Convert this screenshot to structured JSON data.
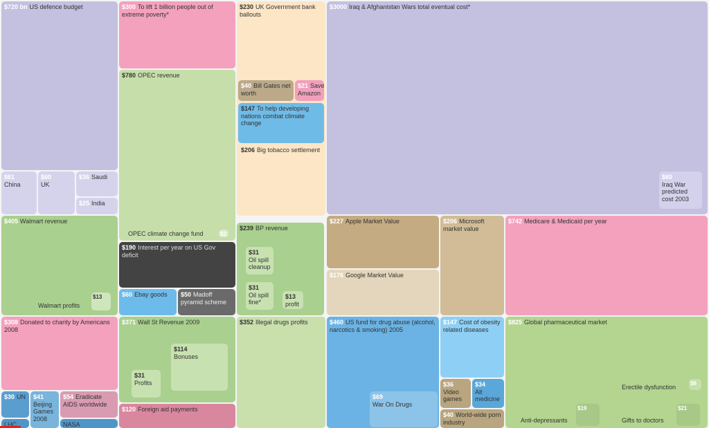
{
  "chart_data": {
    "type": "treemap",
    "unit": "bn",
    "items": [
      {
        "label": "US defence budget",
        "value": 720,
        "value_label": "$720 bn",
        "color": "#c3c0e0",
        "value_color": "#ffffff"
      },
      {
        "label": "China",
        "value": 61,
        "value_label": "$61",
        "color": "#d5d3ec",
        "value_color": "#ffffff"
      },
      {
        "label": "UK",
        "value": 60,
        "value_label": "$60",
        "color": "#d5d3ec",
        "value_color": "#ffffff"
      },
      {
        "label": "Saudi",
        "value": 36,
        "value_label": "$36",
        "color": "#d5d3ec",
        "value_color": "#ffffff"
      },
      {
        "label": "India",
        "value": 25,
        "value_label": "$25",
        "color": "#d5d3ec",
        "value_color": "#ffffff"
      },
      {
        "label": "To lift 1 billion people out of extreme poverty*",
        "value": 300,
        "value_label": "$300",
        "color": "#f3a1bd",
        "value_color": "#ffffff"
      },
      {
        "label": "OPEC revenue",
        "value": 780,
        "value_label": "$780",
        "color": "#c6deaa",
        "value_color": "#333333"
      },
      {
        "label": "OPEC climate change fund",
        "value": 3,
        "value_label": "$3",
        "color": "#dcebc8",
        "value_color": "#ffffff"
      },
      {
        "label": "Interest per year on US Gov deficit",
        "value": 190,
        "value_label": "$190",
        "color": "#434343",
        "value_color": "#ffffff",
        "text_color": "#dddddd"
      },
      {
        "label": "Ebay goods",
        "value": 60,
        "value_label": "$60",
        "color": "#6dbbea",
        "value_color": "#ffffff"
      },
      {
        "label": "Madoff pyramid scheme",
        "value": 50,
        "value_label": "$50",
        "color": "#6a6a6a",
        "value_color": "#ffffff",
        "text_color": "#eeeeee"
      },
      {
        "label": "UK Government bank ballouts",
        "value": 230,
        "value_label": "$230",
        "color": "#fde6c6",
        "value_color": "#333333"
      },
      {
        "label": "Bill Gates net worth",
        "value": 40,
        "value_label": "$40",
        "color": "#bba98a",
        "value_color": "#ffffff"
      },
      {
        "label": "Save Amazon",
        "value": 21,
        "value_label": "$21",
        "color": "#f1a0bc",
        "value_color": "#ffffff"
      },
      {
        "label": "To help developing nations combat climate change",
        "value": 147,
        "value_label": "$147",
        "color": "#6fbbe8",
        "value_color": "#333333"
      },
      {
        "label": "Big tobacco settlement",
        "value": 206,
        "value_label": "$206",
        "color": "#fde6c6",
        "value_color": "#333333"
      },
      {
        "label": "Iraq & Afghanistan Wars total eventual cost*",
        "value": 3000,
        "value_label": "$3000",
        "color": "#c3c0e0",
        "value_color": "#ffffff"
      },
      {
        "label": "Iraq War predicted cost 2003",
        "value": 60,
        "value_label": "$60",
        "color": "#d3d1ec",
        "value_color": "#ffffff"
      },
      {
        "label": "Walmart revenue",
        "value": 405,
        "value_label": "$405",
        "color": "#a9d08e",
        "value_color": "#ffffff"
      },
      {
        "label": "Walmart profits",
        "value": 13,
        "value_label": "$13",
        "color": "#cfe5bb",
        "value_color": "#333333"
      },
      {
        "label": "BP revenue",
        "value": 239,
        "value_label": "$239",
        "color": "#a9d08e",
        "value_color": "#333333"
      },
      {
        "label": "Oil spill cleanup",
        "value": 31,
        "value_label": "$31",
        "color": "#c8e1b1",
        "value_color": "#333333"
      },
      {
        "label": "Oil spill fine*",
        "value": 31,
        "value_label": "$31",
        "color": "#c8e1b1",
        "value_color": "#333333"
      },
      {
        "label": "profit",
        "value": 13,
        "value_label": "$13",
        "color": "#c8e1b1",
        "value_color": "#333333"
      },
      {
        "label": "Apple Market Value",
        "value": 227,
        "value_label": "$227",
        "color": "#c4ab82",
        "value_color": "#ffffff"
      },
      {
        "label": "Google Market Value",
        "value": 176,
        "value_label": "$176",
        "color": "#e3d6bc",
        "value_color": "#ffffff"
      },
      {
        "label": "Microsoft market value",
        "value": 206,
        "value_label": "$206",
        "color": "#d1bc97",
        "value_color": "#ffffff"
      },
      {
        "label": "Medicare & Medicaid per year",
        "value": 742,
        "value_label": "$742",
        "color": "#f3a1bd",
        "value_color": "#ffffff"
      },
      {
        "label": "Donated to charity by Americans 2008",
        "value": 308,
        "value_label": "$308",
        "color": "#f3a1bd",
        "value_color": "#ffffff"
      },
      {
        "label": "UN",
        "value": 30,
        "value_label": "$30",
        "color": "#5a9ed0",
        "value_color": "#ffffff"
      },
      {
        "label": "Beijing Games 2008",
        "value": 41,
        "value_label": "$41",
        "color": "#78b4dc",
        "value_color": "#ffffff"
      },
      {
        "label": "Eradicate AIDS worldwide",
        "value": 54,
        "value_label": "$54",
        "color": "#d99bb1",
        "value_color": "#ffffff"
      },
      {
        "label": "LHC",
        "color": "#4f95c8"
      },
      {
        "label": "NASA",
        "color": "#4f95c8"
      },
      {
        "label": "Wall St Revenue 2009",
        "value": 371,
        "value_label": "$371",
        "color": "#a9d08e",
        "value_color": "#ffffff"
      },
      {
        "label": "Bonuses",
        "value": 114,
        "value_label": "$114",
        "color": "#c8e1b1",
        "value_color": "#333333"
      },
      {
        "label": "Profits",
        "value": 31,
        "value_label": "$31",
        "color": "#c8e1b1",
        "value_color": "#333333"
      },
      {
        "label": "Foreign aid payments",
        "value": 120,
        "value_label": "$120",
        "color": "#d9879f",
        "value_color": "#ffffff"
      },
      {
        "label": "Illegal drugs profits",
        "value": 352,
        "value_label": "$352",
        "color": "#c9dfac",
        "value_color": "#333333"
      },
      {
        "label": "US fund for drug abuse (alcohol, narcotics & smoking) 2005",
        "value": 460,
        "value_label": "$460",
        "color": "#6bb3e4",
        "value_color": "#ffffff"
      },
      {
        "label": "War On Drugs",
        "value": 69,
        "value_label": "$69",
        "color": "#8cc3e8",
        "value_color": "#ffffff"
      },
      {
        "label": "Cost of obesity related diseases",
        "value": 147,
        "value_label": "$147",
        "color": "#8ed0f5",
        "value_color": "#ffffff"
      },
      {
        "label": "Video games",
        "value": 36,
        "value_label": "$36",
        "color": "#b9a57f",
        "value_color": "#ffffff"
      },
      {
        "label": "Alt medicine",
        "value": 34,
        "value_label": "$34",
        "color": "#5aa7da",
        "value_color": "#ffffff"
      },
      {
        "label": "World-wide porn industry",
        "value": 40,
        "value_label": "$40",
        "color": "#b9a57f",
        "value_color": "#ffffff"
      },
      {
        "label": "Global pharmaceutical market",
        "value": 825,
        "value_label": "$825",
        "color": "#b3d58f",
        "value_color": "#ffffff"
      },
      {
        "label": "Erectile dysfunction",
        "value": 6,
        "value_label": "$6",
        "color": "#c6e0ac",
        "value_color": "#ffffff"
      },
      {
        "label": "Anti-depressants",
        "value": 19,
        "value_label": "$19",
        "color": "#a8c888",
        "value_color": "#ffffff"
      },
      {
        "label": "Gifts to doctors",
        "value": 21,
        "value_label": "$21",
        "color": "#a8c888",
        "value_color": "#ffffff"
      }
    ]
  },
  "player": {
    "progress_color": "#e62117"
  }
}
